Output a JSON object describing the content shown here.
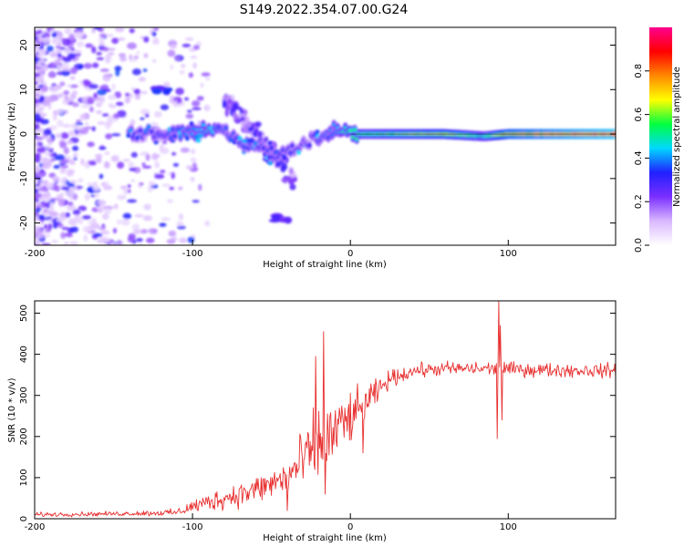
{
  "title": "S149.2022.354.07.00.G24",
  "chart_data": [
    {
      "type": "heatmap",
      "xlabel": "Height of straight line (km)",
      "ylabel": "Frequency (Hz)",
      "xlim": [
        -200,
        168
      ],
      "ylim": [
        -25,
        24
      ],
      "xticks": [
        -200,
        -100,
        0,
        100
      ],
      "yticks": [
        20,
        10,
        0,
        -10,
        -20
      ],
      "xtick_labels": [
        "-200",
        "-100",
        "0",
        "100"
      ],
      "ytick_labels": [
        "20",
        "10",
        "0",
        "-10",
        "-20"
      ],
      "colorbar": {
        "label": "Normalized spectral amplitude",
        "range": [
          0,
          1
        ],
        "ticks": [
          0.0,
          0.2,
          0.4,
          0.6,
          0.8
        ],
        "tick_labels": [
          "0.0",
          "0.2",
          "0.4",
          "0.6",
          "0.8"
        ],
        "colors": [
          "#ffffff",
          "#d9b8ff",
          "#7b2fff",
          "#2020ff",
          "#00d8ff",
          "#00ff40",
          "#ffff00",
          "#ff8800",
          "#ff0000",
          "#ff0090"
        ]
      },
      "main_ridge": [
        {
          "x": -140,
          "freq": 0.0,
          "amp": 0.3
        },
        {
          "x": -120,
          "freq": 0.3,
          "amp": 0.35
        },
        {
          "x": -100,
          "freq": 0.0,
          "amp": 0.4
        },
        {
          "x": -90,
          "freq": 1.5,
          "amp": 0.45
        },
        {
          "x": -80,
          "freq": 0.5,
          "amp": 0.35
        },
        {
          "x": -60,
          "freq": -3.0,
          "amp": 0.35
        },
        {
          "x": -45,
          "freq": -5.0,
          "amp": 0.35
        },
        {
          "x": -30,
          "freq": -2.0,
          "amp": 0.3
        },
        {
          "x": -20,
          "freq": -0.5,
          "amp": 0.35
        },
        {
          "x": -10,
          "freq": 1.0,
          "amp": 0.4
        },
        {
          "x": 0,
          "freq": 0.0,
          "amp": 0.55
        },
        {
          "x": 20,
          "freq": 0.0,
          "amp": 0.6
        },
        {
          "x": 60,
          "freq": 0.0,
          "amp": 0.7
        },
        {
          "x": 85,
          "freq": -0.5,
          "amp": 0.55
        },
        {
          "x": 100,
          "freq": 0.0,
          "amp": 0.8
        },
        {
          "x": 140,
          "freq": 0.0,
          "amp": 0.9
        },
        {
          "x": 168,
          "freq": 0.0,
          "amp": 0.95
        }
      ],
      "features": [
        {
          "x": -120,
          "freq": 10.0,
          "amp": 0.35
        },
        {
          "x": -43,
          "freq": -19.0,
          "amp": 0.3
        }
      ]
    },
    {
      "type": "line",
      "xlabel": "Height of straight line (km)",
      "ylabel": "SNR (10 * v/v)",
      "xlim": [
        -200,
        168
      ],
      "ylim": [
        0,
        530
      ],
      "xticks": [
        -200,
        -100,
        0,
        100
      ],
      "yticks": [
        0,
        100,
        200,
        300,
        400,
        500
      ],
      "xtick_labels": [
        "-200",
        "-100",
        "0",
        "100"
      ],
      "ytick_labels": [
        "0",
        "100",
        "200",
        "300",
        "400",
        "500"
      ],
      "color": "#e83030",
      "series": [
        {
          "name": "SNR",
          "envelope": [
            {
              "x": -200,
              "mean": 10,
              "spread": 8
            },
            {
              "x": -150,
              "mean": 12,
              "spread": 8
            },
            {
              "x": -110,
              "mean": 15,
              "spread": 12
            },
            {
              "x": -100,
              "mean": 30,
              "spread": 25
            },
            {
              "x": -80,
              "mean": 50,
              "spread": 40
            },
            {
              "x": -60,
              "mean": 70,
              "spread": 50
            },
            {
              "x": -40,
              "mean": 100,
              "spread": 70
            },
            {
              "x": -25,
              "mean": 160,
              "spread": 130
            },
            {
              "x": -15,
              "mean": 190,
              "spread": 140
            },
            {
              "x": -5,
              "mean": 230,
              "spread": 100
            },
            {
              "x": 5,
              "mean": 260,
              "spread": 80
            },
            {
              "x": 15,
              "mean": 300,
              "spread": 50
            },
            {
              "x": 25,
              "mean": 340,
              "spread": 30
            },
            {
              "x": 40,
              "mean": 360,
              "spread": 25
            },
            {
              "x": 60,
              "mean": 365,
              "spread": 25
            },
            {
              "x": 90,
              "mean": 365,
              "spread": 25
            },
            {
              "x": 120,
              "mean": 362,
              "spread": 25
            },
            {
              "x": 168,
              "mean": 360,
              "spread": 25
            }
          ],
          "spikes": [
            {
              "x": -17,
              "value": 455
            },
            {
              "x": -16,
              "value": 60
            },
            {
              "x": -22,
              "value": 395
            },
            {
              "x": 93,
              "value": 195
            },
            {
              "x": 94,
              "value": 530
            },
            {
              "x": 95,
              "value": 470
            },
            {
              "x": 96,
              "value": 240
            },
            {
              "x": -40,
              "value": 20
            },
            {
              "x": 8,
              "value": 160
            }
          ]
        }
      ]
    }
  ]
}
